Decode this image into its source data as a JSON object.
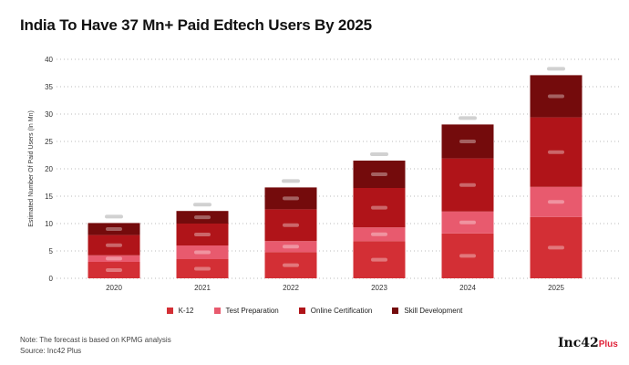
{
  "title": "India To Have 37 Mn+ Paid Edtech Users By 2025",
  "note": "Note: The forecast is based on KPMG analysis",
  "source": "Source: Inc42 Plus",
  "logo": {
    "main": "Inc42",
    "sub": "Plus"
  },
  "chart_data": {
    "type": "bar",
    "stacked": true,
    "title": "India To Have 37 Mn+ Paid Edtech Users By 2025",
    "xlabel": "",
    "ylabel": "Estimated Number Of Paid Users (In Mn)",
    "ylim": [
      0,
      40
    ],
    "yticks": [
      0,
      5,
      10,
      15,
      20,
      25,
      30,
      35,
      40
    ],
    "grid": true,
    "legend_position": "bottom",
    "categories": [
      "2020",
      "2021",
      "2022",
      "2023",
      "2024",
      "2025"
    ],
    "series": [
      {
        "name": "K-12",
        "color": "#d32f35",
        "values": [
          3.0,
          3.5,
          4.8,
          6.8,
          8.2,
          11.2
        ]
      },
      {
        "name": "Test Preparation",
        "color": "#e85a6e",
        "values": [
          1.2,
          2.5,
          2.0,
          2.5,
          4.0,
          5.5
        ]
      },
      {
        "name": "Online Certification",
        "color": "#b01419",
        "values": [
          3.7,
          4.0,
          5.8,
          7.2,
          9.7,
          12.7
        ]
      },
      {
        "name": "Skill Development",
        "color": "#740b0c",
        "values": [
          2.2,
          2.3,
          4.0,
          5.0,
          6.2,
          7.7
        ]
      }
    ]
  }
}
